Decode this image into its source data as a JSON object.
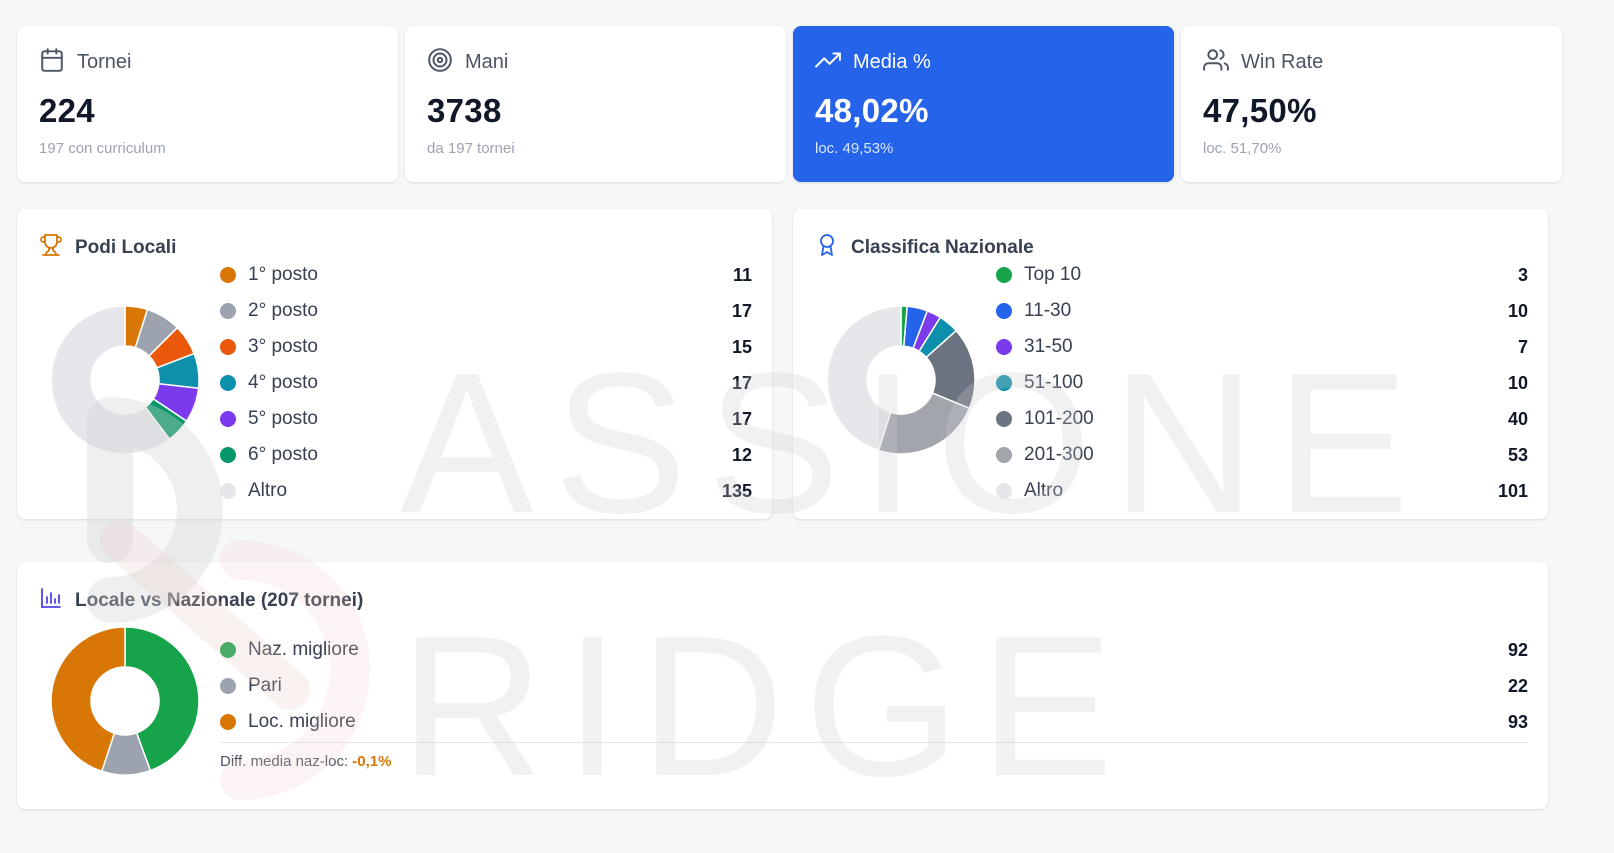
{
  "stats": [
    {
      "label": "Tornei",
      "value": "224",
      "sub": "197 con curriculum",
      "icon": "calendar-icon"
    },
    {
      "label": "Mani",
      "value": "3738",
      "sub": "da 197 tornei",
      "icon": "target-icon"
    },
    {
      "label": "Media %",
      "value": "48,02%",
      "sub": "loc. 49,53%",
      "icon": "trending-up-icon",
      "highlight": true
    },
    {
      "label": "Win Rate",
      "value": "47,50%",
      "sub": "loc. 51,70%",
      "icon": "users-icon"
    }
  ],
  "podi": {
    "title": "Podi Locali",
    "icon": "trophy-icon",
    "items": [
      {
        "label": "1° posto",
        "value": 11,
        "color": "#d97706"
      },
      {
        "label": "2° posto",
        "value": 17,
        "color": "#9ca3af"
      },
      {
        "label": "3° posto",
        "value": 15,
        "color": "#ea580c"
      },
      {
        "label": "4° posto",
        "value": 17,
        "color": "#0e8fab"
      },
      {
        "label": "5° posto",
        "value": 17,
        "color": "#7c3aed"
      },
      {
        "label": "6° posto",
        "value": 12,
        "color": "#059669"
      },
      {
        "label": "Altro",
        "value": 135,
        "color": "#e5e7eb"
      }
    ]
  },
  "classifica": {
    "title": "Classifica Nazionale",
    "icon": "award-icon",
    "items": [
      {
        "label": "Top 10",
        "value": 3,
        "color": "#16a34a"
      },
      {
        "label": "11-30",
        "value": 10,
        "color": "#2563eb"
      },
      {
        "label": "31-50",
        "value": 7,
        "color": "#7c3aed"
      },
      {
        "label": "51-100",
        "value": 10,
        "color": "#0e8fab"
      },
      {
        "label": "101-200",
        "value": 40,
        "color": "#6b7280"
      },
      {
        "label": "201-300",
        "value": 53,
        "color": "#a3a5ad"
      },
      {
        "label": "Altro",
        "value": 101,
        "color": "#e5e7eb"
      }
    ]
  },
  "confronto": {
    "title": "Locale vs Nazionale (207 tornei)",
    "icon": "bar-chart-icon",
    "items": [
      {
        "label": "Naz. migliore",
        "value": 92,
        "color": "#16a34a"
      },
      {
        "label": "Pari",
        "value": 22,
        "color": "#9ca3af"
      },
      {
        "label": "Loc. migliore",
        "value": 93,
        "color": "#d97706"
      }
    ],
    "diff_label": "Diff. media naz-loc:",
    "diff_value": "-0,1%"
  },
  "watermark_text": "PASSIONE BRIDGE"
}
